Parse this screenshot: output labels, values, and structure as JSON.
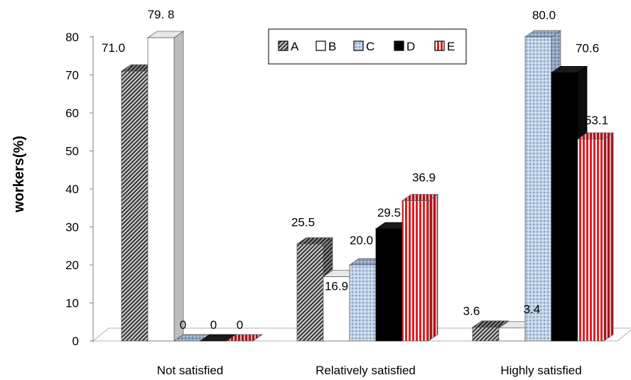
{
  "chart_data": {
    "type": "bar",
    "title": "",
    "xlabel": "",
    "ylabel": "workers(%)",
    "ylim": [
      0,
      80
    ],
    "yticks": [
      0,
      10,
      20,
      30,
      40,
      50,
      60,
      70,
      80
    ],
    "grid": false,
    "legend_position": "top-center",
    "categories": [
      "Not satisfied",
      "Relatively satisfied",
      "Highly satisfied"
    ],
    "series": [
      {
        "name": "A",
        "values": [
          71.0,
          25.5,
          3.6
        ],
        "labels": [
          "71.0",
          "25.5",
          "3.6"
        ],
        "color": "#4a4a4a",
        "pattern": "diagonal-hatch"
      },
      {
        "name": "B",
        "values": [
          79.8,
          16.9,
          3.4
        ],
        "labels": [
          "79. 8",
          "16.9",
          "3.4"
        ],
        "color": "#ffffff",
        "pattern": "solid"
      },
      {
        "name": "C",
        "values": [
          0,
          20.0,
          80.0
        ],
        "labels": [
          "0",
          "20.0",
          "80.0"
        ],
        "color": "#a9c0dc",
        "pattern": "dotted"
      },
      {
        "name": "D",
        "values": [
          0,
          29.5,
          70.6
        ],
        "labels": [
          "0",
          "29.5",
          "70.6"
        ],
        "color": "#000000",
        "pattern": "solid"
      },
      {
        "name": "E",
        "values": [
          0,
          36.9,
          53.1
        ],
        "labels": [
          "0",
          "36.9",
          "53.1"
        ],
        "color": "#e31e24",
        "pattern": "vertical-stripes"
      }
    ]
  }
}
